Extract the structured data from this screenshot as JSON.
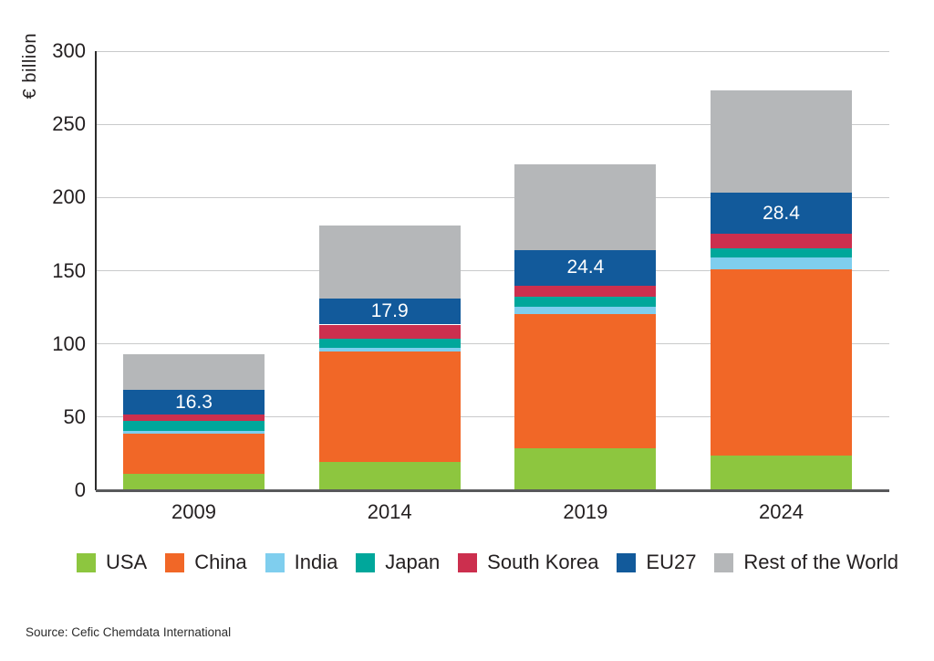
{
  "chart_data": {
    "type": "bar",
    "variant": "stacked",
    "title": "",
    "ylabel": "€ billion",
    "ylim": [
      0,
      300
    ],
    "yticks": [
      0,
      50,
      100,
      150,
      200,
      250,
      300
    ],
    "grid": true,
    "legend_position": "bottom",
    "categories": [
      "2009",
      "2014",
      "2019",
      "2024"
    ],
    "series": [
      {
        "name": "USA",
        "color": "#8dc63f",
        "values": [
          11.5,
          19.4,
          28.7,
          23.5
        ]
      },
      {
        "name": "China",
        "color": "#f16727",
        "values": [
          27.0,
          75.5,
          91.8,
          127.5
        ]
      },
      {
        "name": "India",
        "color": "#7fceee",
        "values": [
          2.0,
          2.7,
          5.0,
          8.0
        ]
      },
      {
        "name": "Japan",
        "color": "#00a79b",
        "values": [
          7.0,
          6.0,
          7.0,
          6.0
        ]
      },
      {
        "name": "South Korea",
        "color": "#cc2f4e",
        "values": [
          4.5,
          9.6,
          7.3,
          10.0
        ]
      },
      {
        "name": "EU27",
        "color": "#125a9b",
        "values": [
          16.3,
          17.9,
          24.4,
          28.4
        ]
      },
      {
        "name": "Rest of the World",
        "color": "#b5b7b9",
        "values": [
          24.7,
          50.0,
          58.5,
          70.0
        ]
      }
    ],
    "totals": [
      93.0,
      181.1,
      222.7,
      273.4
    ],
    "bar_labels": {
      "series": "EU27",
      "values": [
        "16.3",
        "17.9",
        "24.4",
        "28.4"
      ],
      "color": "#ffffff"
    }
  },
  "source": "Source: Cefic Chemdata International"
}
